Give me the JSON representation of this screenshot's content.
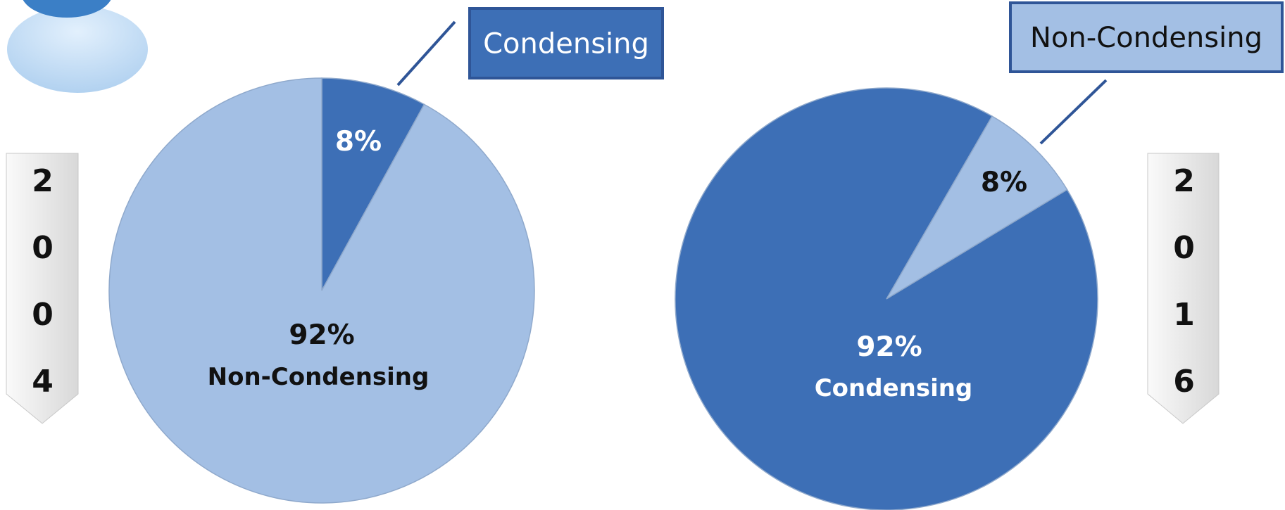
{
  "chart_data": [
    {
      "type": "pie",
      "year": "2004",
      "categories": [
        "Condensing",
        "Non-Condensing"
      ],
      "values": [
        8,
        92
      ],
      "value_labels": [
        "8%",
        "92%"
      ],
      "colors": [
        "#3d6fb6",
        "#a3bfe4"
      ]
    },
    {
      "type": "pie",
      "year": "2016",
      "categories": [
        "Non-Condensing",
        "Condensing"
      ],
      "values": [
        8,
        92
      ],
      "value_labels": [
        "8%",
        "92%"
      ],
      "colors": [
        "#a3bfe4",
        "#3d6fb6"
      ]
    }
  ]
}
